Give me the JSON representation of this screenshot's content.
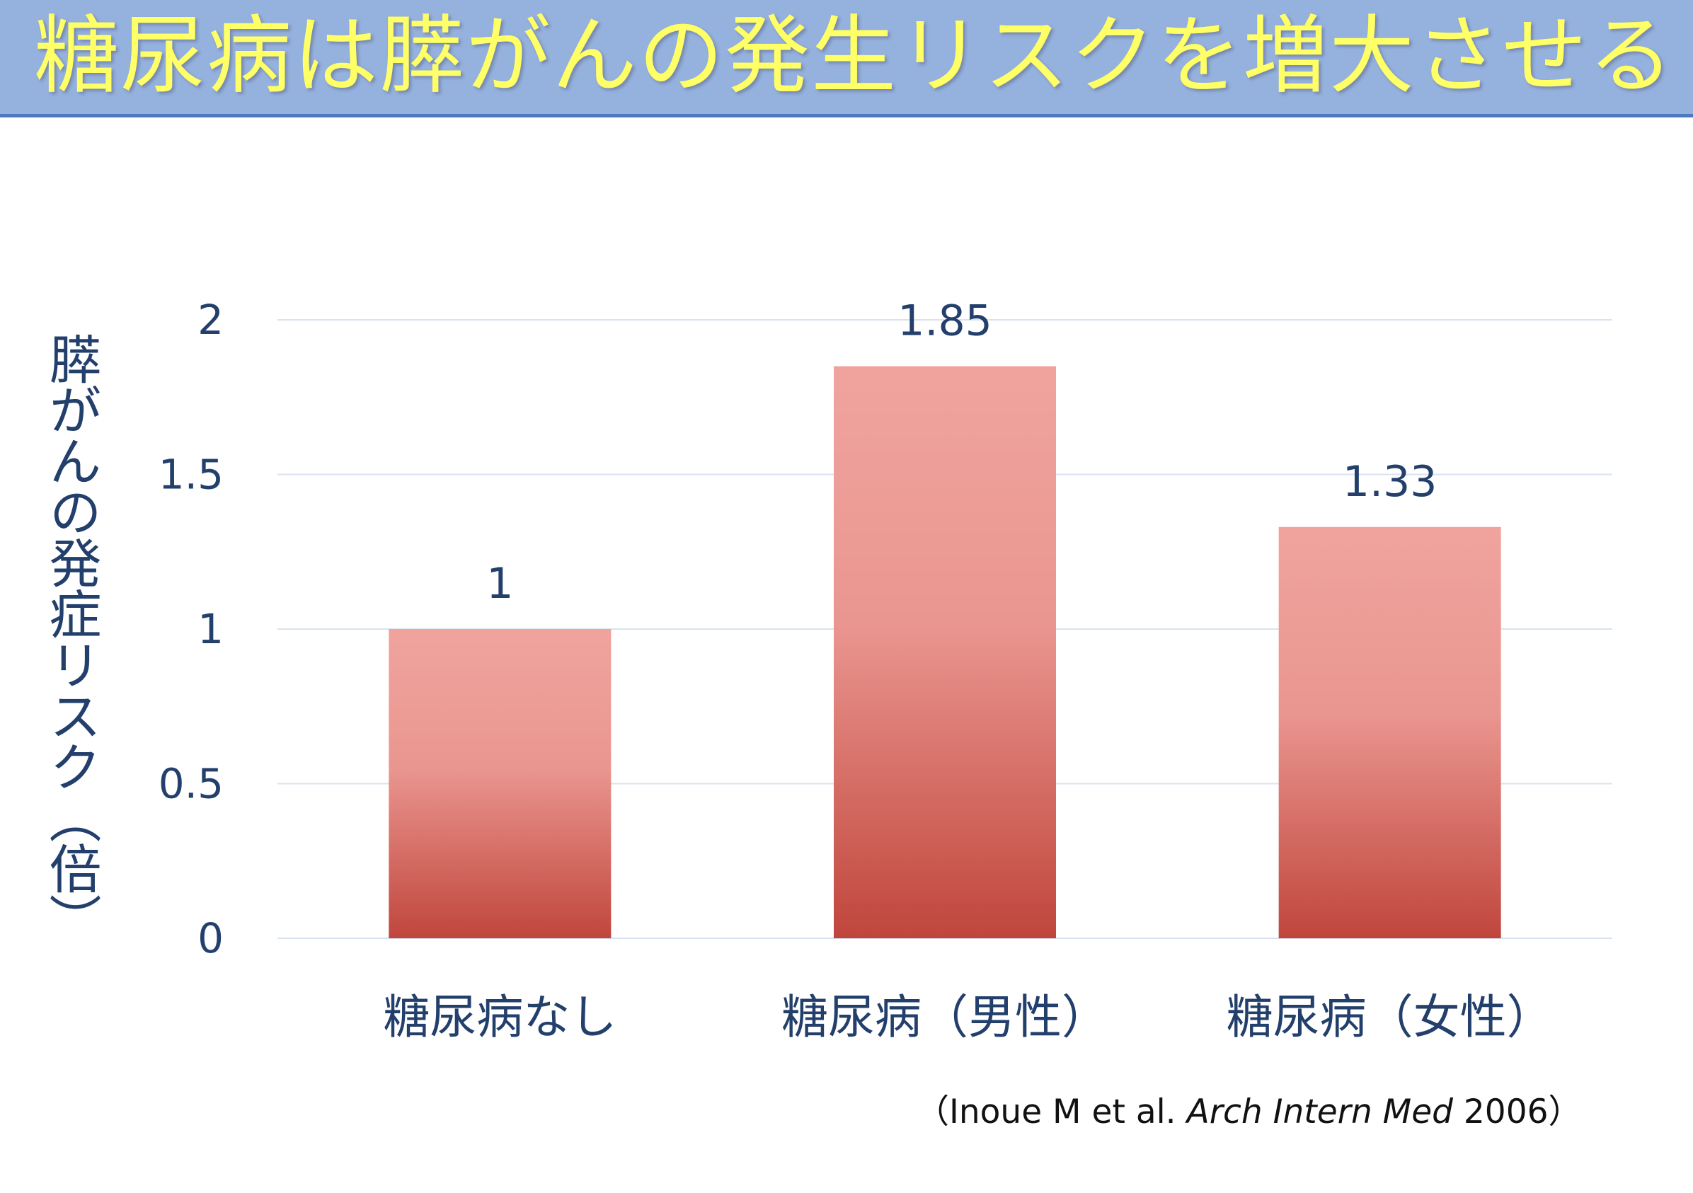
{
  "title": "糖尿病は膵がんの発生リスクを増大させる",
  "citation": {
    "open_paren": "（",
    "authors": "Inoue M  et al. ",
    "journal": "Arch Intern Med",
    "year": " 2006",
    "close_paren": "）"
  },
  "colors": {
    "banner": "#95b1dd",
    "banner_border": "#4f79bf",
    "title_text": "#ffff66",
    "axis_text": "#233f6b",
    "bar_top": "#f0a39d",
    "bar_bottom": "#c0463c",
    "gridline": "#d9e3ef"
  },
  "chart_data": {
    "type": "bar",
    "title": "",
    "xlabel": "",
    "ylabel": "膵がんの発症リスク（倍）",
    "categories": [
      "糖尿病なし",
      "糖尿病（男性）",
      "糖尿病（女性）"
    ],
    "values": [
      1,
      1.85,
      1.33
    ],
    "data_labels": [
      "1",
      "1.85",
      "1.33"
    ],
    "ylim": [
      0,
      2
    ],
    "yticks": [
      0,
      0.5,
      1,
      1.5,
      2
    ],
    "ytick_labels": [
      "0",
      "0.5",
      "1",
      "1.5",
      "2"
    ],
    "grid": true,
    "legend": "none"
  }
}
